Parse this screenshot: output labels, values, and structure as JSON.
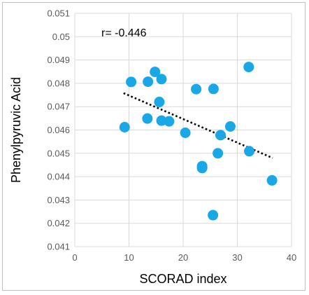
{
  "chart_data": {
    "type": "scatter",
    "xlabel": "SCORAD index",
    "ylabel": "Phenylpyruvic Acid",
    "annotation": "r= -0.446",
    "xlim": [
      0,
      40
    ],
    "ylim": [
      0.041,
      0.051
    ],
    "xticks": [
      "0",
      "10",
      "20",
      "30",
      "40"
    ],
    "yticks": [
      "0.041",
      "0.042",
      "0.043",
      "0.044",
      "0.045",
      "0.046",
      "0.047",
      "0.048",
      "0.049",
      "0.05",
      "0.051"
    ],
    "grid": true,
    "legend": "none",
    "colors": {
      "points": "#1aa7e6",
      "trendline": "#000000",
      "grid": "#d9d9d9",
      "text": "#595959"
    },
    "series": [
      {
        "points": [
          {
            "x": 9.2,
            "y": 0.04612
          },
          {
            "x": 10.4,
            "y": 0.04806
          },
          {
            "x": 13.4,
            "y": 0.04649
          },
          {
            "x": 13.5,
            "y": 0.04807
          },
          {
            "x": 14.8,
            "y": 0.04849
          },
          {
            "x": 15.6,
            "y": 0.0472
          },
          {
            "x": 16.0,
            "y": 0.04818
          },
          {
            "x": 16.0,
            "y": 0.0464
          },
          {
            "x": 17.4,
            "y": 0.04637
          },
          {
            "x": 20.4,
            "y": 0.04588
          },
          {
            "x": 22.4,
            "y": 0.04775
          },
          {
            "x": 23.5,
            "y": 0.04445
          },
          {
            "x": 23.5,
            "y": 0.04437
          },
          {
            "x": 25.6,
            "y": 0.04776
          },
          {
            "x": 25.5,
            "y": 0.04235
          },
          {
            "x": 26.4,
            "y": 0.045
          },
          {
            "x": 26.9,
            "y": 0.04578
          },
          {
            "x": 28.7,
            "y": 0.04615
          },
          {
            "x": 32.1,
            "y": 0.0487
          },
          {
            "x": 32.2,
            "y": 0.04509
          },
          {
            "x": 36.4,
            "y": 0.04384
          }
        ]
      }
    ],
    "trendline": {
      "x": [
        9,
        36.5
      ],
      "y": [
        0.04758,
        0.0448
      ]
    }
  }
}
